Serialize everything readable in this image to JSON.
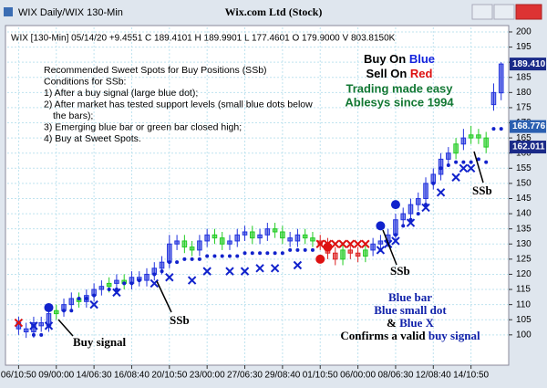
{
  "window": {
    "title": "WIX Daily/WIX 130-Min"
  },
  "chart_data": {
    "type": "candlestick",
    "title": "Wix.com Ltd (Stock)",
    "subtitle": "WIX [130-Min] 05/14/20 +9.4551 C 189.4101 H 189.9901 L 177.4601 O 179.9000 V 803.8150K",
    "open": [
      104,
      102,
      101,
      104,
      103,
      107,
      108,
      110,
      112,
      111,
      113,
      115,
      116,
      117,
      118,
      117,
      119,
      118,
      120,
      122,
      124,
      130,
      131,
      129,
      128,
      131,
      133,
      132,
      130,
      131,
      133,
      134,
      132,
      133,
      135,
      134,
      132,
      131,
      133,
      132,
      131,
      130,
      127,
      125,
      128,
      127,
      126,
      128,
      130,
      131,
      133,
      138,
      140,
      143,
      145,
      150,
      153,
      158,
      160,
      163,
      165,
      166,
      165,
      176,
      179.9
    ],
    "high": [
      106,
      104,
      106,
      106,
      109,
      110,
      112,
      114,
      114,
      115,
      117,
      118,
      119,
      120,
      120,
      121,
      121,
      122,
      124,
      126,
      133,
      133,
      133,
      131,
      133,
      135,
      135,
      134,
      133,
      135,
      136,
      136,
      135,
      137,
      137,
      136,
      134,
      135,
      135,
      134,
      133,
      132,
      129,
      130,
      130,
      129,
      130,
      132,
      133,
      135,
      140,
      142,
      145,
      147,
      152,
      155,
      160,
      162,
      165,
      168,
      169,
      168,
      167,
      183,
      189.99
    ],
    "low": [
      100,
      99,
      99,
      101,
      101,
      105,
      106,
      108,
      109,
      109,
      111,
      113,
      114,
      115,
      115,
      115,
      116,
      116,
      118,
      120,
      122,
      128,
      127,
      126,
      126,
      129,
      130,
      128,
      128,
      129,
      131,
      130,
      130,
      131,
      132,
      130,
      129,
      129,
      130,
      129,
      128,
      125,
      123,
      123,
      125,
      124,
      124,
      126,
      128,
      129,
      131,
      136,
      138,
      141,
      143,
      148,
      151,
      156,
      158,
      161,
      163,
      163,
      160,
      174,
      177.46
    ],
    "close": [
      102,
      101,
      104,
      103,
      107,
      108,
      110,
      112,
      111,
      113,
      115,
      116,
      117,
      118,
      117,
      119,
      118,
      120,
      122,
      124,
      130,
      131,
      129,
      128,
      131,
      133,
      132,
      130,
      131,
      133,
      134,
      132,
      133,
      135,
      134,
      132,
      131,
      133,
      132,
      131,
      130,
      127,
      125,
      128,
      127,
      126,
      128,
      130,
      131,
      133,
      138,
      140,
      143,
      145,
      150,
      153,
      158,
      160,
      163,
      165,
      166,
      165,
      162,
      180,
      189.41
    ],
    "candle_colors": [
      "#2233dd",
      "#2233dd",
      "#2233dd",
      "#2233dd",
      "#2233dd",
      "#22cc22",
      "#2233dd",
      "#2233dd",
      "#22cc22",
      "#2233dd",
      "#2233dd",
      "#2233dd",
      "#22cc22",
      "#2233dd",
      "#22cc22",
      "#2233dd",
      "#2233dd",
      "#2233dd",
      "#2233dd",
      "#2233dd",
      "#2233dd",
      "#2233dd",
      "#22cc22",
      "#22cc22",
      "#2233dd",
      "#2233dd",
      "#22cc22",
      "#22cc22",
      "#2233dd",
      "#2233dd",
      "#2233dd",
      "#22cc22",
      "#2233dd",
      "#2233dd",
      "#22cc22",
      "#22cc22",
      "#2233dd",
      "#2233dd",
      "#22cc22",
      "#22cc22",
      "#dd2222",
      "#dd2222",
      "#dd2222",
      "#22cc22",
      "#dd2222",
      "#dd2222",
      "#22cc22",
      "#2233dd",
      "#2233dd",
      "#2233dd",
      "#2233dd",
      "#2233dd",
      "#2233dd",
      "#2233dd",
      "#2233dd",
      "#2233dd",
      "#2233dd",
      "#2233dd",
      "#22cc22",
      "#2233dd",
      "#22cc22",
      "#22cc22",
      "#22cc22",
      "#2233dd",
      "#2233dd"
    ],
    "markers": [
      {
        "kind": "dot",
        "color": "#1122cc",
        "points": [
          [
            2,
            100
          ],
          [
            3,
            100
          ],
          [
            6,
            108
          ],
          [
            7,
            108
          ],
          [
            8,
            112
          ],
          [
            9,
            112
          ],
          [
            10,
            113
          ],
          [
            12,
            115
          ],
          [
            13,
            115
          ],
          [
            14,
            117
          ],
          [
            15,
            117
          ],
          [
            16,
            118
          ],
          [
            18,
            120
          ],
          [
            19,
            121
          ],
          [
            20,
            124
          ],
          [
            21,
            124
          ],
          [
            22,
            125
          ],
          [
            23,
            125
          ],
          [
            24,
            125
          ],
          [
            25,
            126
          ],
          [
            26,
            126
          ],
          [
            27,
            126
          ],
          [
            28,
            126
          ],
          [
            29,
            126
          ],
          [
            30,
            127
          ],
          [
            31,
            127
          ],
          [
            32,
            127
          ],
          [
            33,
            127
          ],
          [
            34,
            127
          ],
          [
            35,
            127
          ],
          [
            36,
            128
          ],
          [
            37,
            128
          ],
          [
            38,
            128
          ],
          [
            39,
            128
          ],
          [
            48,
            128
          ],
          [
            49,
            130
          ],
          [
            50,
            133
          ],
          [
            51,
            136
          ],
          [
            52,
            138
          ],
          [
            53,
            140
          ],
          [
            54,
            143
          ],
          [
            55,
            150
          ],
          [
            56,
            155
          ],
          [
            57,
            156
          ],
          [
            58,
            157
          ],
          [
            59,
            157
          ],
          [
            60,
            157
          ],
          [
            61,
            158
          ],
          [
            62,
            157
          ],
          [
            63,
            168
          ],
          [
            64,
            168
          ]
        ]
      },
      {
        "kind": "x",
        "color": "#1122cc",
        "points": [
          [
            2,
            103
          ],
          [
            4,
            103
          ],
          [
            10,
            110
          ],
          [
            13,
            114
          ],
          [
            18,
            117
          ],
          [
            20,
            119
          ],
          [
            23,
            118
          ],
          [
            25,
            121
          ],
          [
            28,
            121
          ],
          [
            30,
            121
          ],
          [
            32,
            122
          ],
          [
            34,
            122
          ],
          [
            37,
            123
          ],
          [
            48,
            128
          ],
          [
            49,
            130
          ],
          [
            50,
            131
          ],
          [
            52,
            137
          ],
          [
            54,
            142
          ],
          [
            56,
            147
          ],
          [
            58,
            152
          ],
          [
            59,
            155
          ],
          [
            60,
            155
          ]
        ]
      },
      {
        "kind": "x",
        "color": "#dd1111",
        "points": [
          [
            0,
            104
          ],
          [
            40,
            130
          ],
          [
            41,
            130
          ],
          [
            42,
            130
          ],
          [
            43,
            130
          ],
          [
            44,
            130
          ],
          [
            45,
            130
          ],
          [
            46,
            130
          ]
        ]
      },
      {
        "kind": "bigdot",
        "color": "#1122cc",
        "points": [
          [
            4,
            109
          ],
          [
            48,
            136
          ],
          [
            50,
            143
          ]
        ]
      },
      {
        "kind": "bigdot",
        "color": "#dd1111",
        "points": [
          [
            40,
            125
          ],
          [
            41,
            129
          ]
        ]
      }
    ],
    "price_labels": [
      {
        "value": 189.41,
        "label": "189.410",
        "color": "#1a2a88"
      },
      {
        "value": 168.776,
        "label": "168.776",
        "color": "#2a5fb0"
      },
      {
        "value": 162.011,
        "label": "162.011",
        "color": "#1a2a88"
      }
    ],
    "xlim": [
      -1.5,
      65
    ],
    "ylim": [
      90,
      201.5
    ],
    "yticks": [
      100,
      105,
      110,
      115,
      120,
      125,
      130,
      135,
      140,
      145,
      150,
      155,
      160,
      165,
      170,
      175,
      180,
      185,
      190,
      195,
      200
    ],
    "xticks": [
      {
        "value": 0,
        "label": "06/10:50"
      },
      {
        "value": 5,
        "label": "09/00:00"
      },
      {
        "value": 10,
        "label": "14/06:30"
      },
      {
        "value": 15,
        "label": "16/08:40"
      },
      {
        "value": 20,
        "label": "20/10:50"
      },
      {
        "value": 25,
        "label": "23/00:00"
      },
      {
        "value": 30,
        "label": "27/06:30"
      },
      {
        "value": 35,
        "label": "29/08:40"
      },
      {
        "value": 40,
        "label": "01/10:50"
      },
      {
        "value": 45,
        "label": "06/00:00"
      },
      {
        "value": 50,
        "label": "08/06:30"
      },
      {
        "value": 55,
        "label": "12/08:40"
      },
      {
        "value": 60,
        "label": "14/10:50"
      }
    ],
    "grid": true,
    "notes": [
      "Recommended Sweet Spots for Buy Positions (SSb)",
      "Conditions for SSb:",
      "1) After a buy signal (large blue dot);",
      "2) After market has tested support levels (small blue dots below",
      "the bars);",
      "3) Emerging blue bar or green bar closed high;",
      "4) Buy at Sweet Spots."
    ],
    "branding": {
      "buy": [
        "Buy On ",
        "Blue"
      ],
      "sell": [
        "Sell On ",
        "Red"
      ],
      "line3": "Trading made easy",
      "line4": "Ablesys since 1994"
    },
    "annotations": {
      "buy_signal": "Buy signal",
      "ssb": [
        "SSb",
        "SSb",
        "SSb"
      ]
    },
    "legend_box": {
      "l1": "Blue bar",
      "l2": "Blue small dot",
      "l3": [
        "& ",
        "Blue X"
      ],
      "l4": [
        "Confirms a valid ",
        "buy signal"
      ]
    }
  }
}
